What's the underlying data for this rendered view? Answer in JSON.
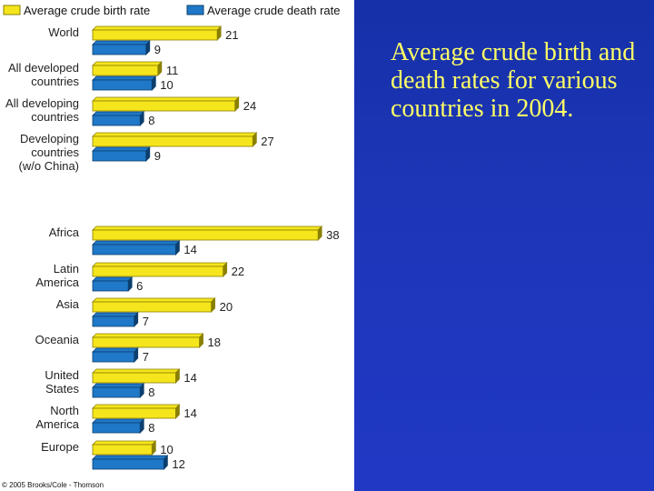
{
  "caption": "Average crude birth and death rates for various countries in 2004.",
  "credit": "© 2005 Brooks/Cole - Thomson",
  "colors": {
    "birth_fill": "#f5e51c",
    "birth_edge": "#8a8000",
    "death_fill": "#1f78c8",
    "death_edge": "#0d3f6e",
    "panel": "#1d36b8",
    "caption": "#ffff66"
  },
  "chart_data": {
    "type": "bar",
    "orientation": "horizontal",
    "legend_placement": "top",
    "grid": false,
    "categories": [
      [
        "World"
      ],
      [
        "All developed",
        "countries"
      ],
      [
        "All developing",
        "countries"
      ],
      [
        "Developing",
        "countries",
        "(w/o China)"
      ],
      [
        "Africa"
      ],
      [
        "Latin",
        "America"
      ],
      [
        "Asia"
      ],
      [
        "Oceania"
      ],
      [
        "United",
        "States"
      ],
      [
        "North",
        "America"
      ],
      [
        "Europe"
      ]
    ],
    "series": [
      {
        "name": "Average crude birth rate",
        "values": [
          21,
          11,
          24,
          27,
          38,
          22,
          20,
          18,
          14,
          14,
          10
        ]
      },
      {
        "name": "Average crude death rate",
        "values": [
          9,
          10,
          8,
          9,
          14,
          6,
          7,
          7,
          8,
          8,
          12
        ]
      }
    ]
  }
}
